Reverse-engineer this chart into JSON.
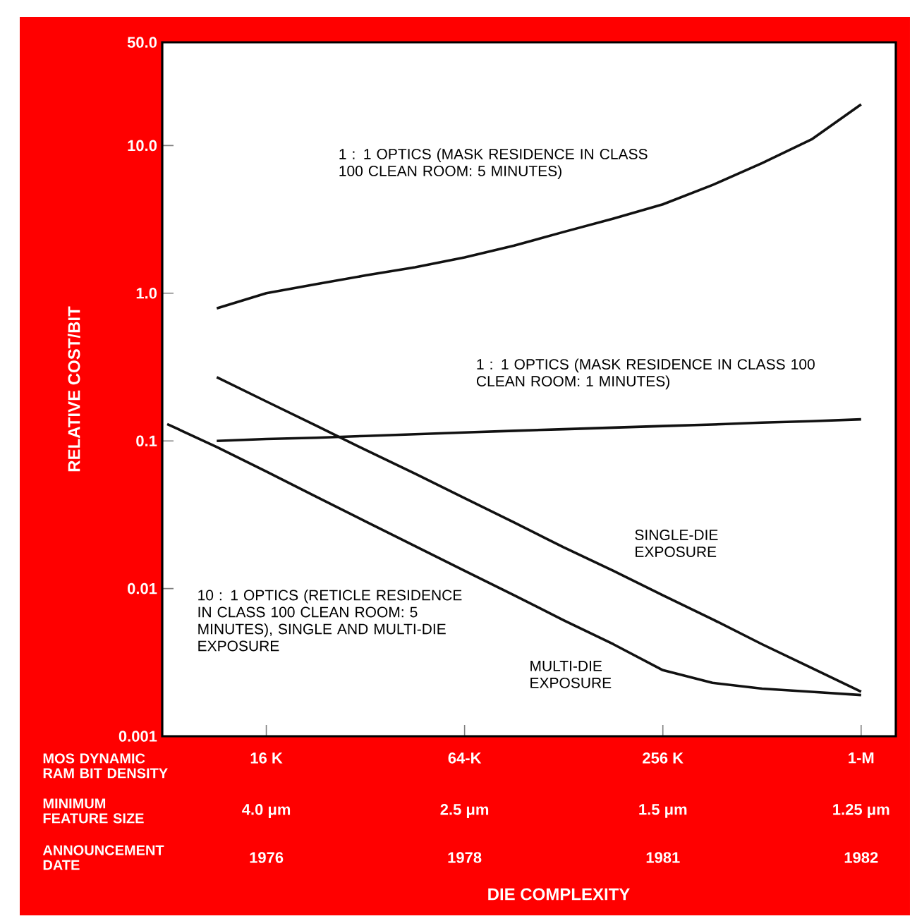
{
  "chart_data": {
    "type": "line",
    "ylabel": "RELATIVE COST/BIT",
    "categories": [
      null,
      null,
      "16 K",
      null,
      null,
      null,
      "64-K",
      null,
      null,
      null,
      "256 K",
      null,
      null,
      null,
      "1-M"
    ],
    "ylim": [
      0.001,
      50
    ],
    "log": "y",
    "yticks": [
      0.001,
      0.01,
      0.1,
      {
        "value": 1,
        "label": "1.0"
      },
      {
        "value": 10,
        "label": "10.0"
      },
      {
        "value": 50,
        "label": "50.0"
      }
    ],
    "series": [
      {
        "color": "#111111",
        "values": [
          null,
          0.79,
          1.0,
          1.15,
          1.32,
          1.5,
          1.75,
          2.1,
          2.6,
          3.2,
          4.0,
          5.4,
          7.6,
          11,
          19
        ]
      },
      {
        "color": "#111111",
        "values": [
          null,
          0.1,
          0.103,
          0.105,
          0.108,
          0.111,
          0.114,
          0.117,
          0.12,
          0.123,
          0.126,
          0.129,
          0.133,
          0.136,
          0.14
        ]
      },
      {
        "color": "#111111",
        "values": [
          null,
          0.27,
          0.185,
          0.127,
          0.087,
          0.06,
          0.041,
          0.028,
          0.019,
          0.0132,
          0.009,
          0.0062,
          0.0042,
          0.0029,
          0.002
        ]
      },
      {
        "color": "#111111",
        "values": [
          0.13,
          0.091,
          0.062,
          0.042,
          0.0285,
          0.0194,
          0.0132,
          0.009,
          0.0061,
          0.0042,
          0.0028,
          0.0023,
          0.0021,
          0.002,
          0.0019
        ]
      }
    ],
    "annotations": [
      "1 : 1 OPTICS (MASK RESIDENCE IN CLASS 100 CLEAN ROOM: 5 MINUTES)",
      "1 : 1 OPTICS (MASK RESIDENCE IN CLASS 100 CLEAN ROOM: 1 MINUTES)",
      "SINGLE-DIE EXPOSURE",
      "MULTI-DIE EXPOSURE",
      "10 : 1 OPTICS (RETICLE RESIDENCE IN CLASS 100 CLEAN ROOM: 5 MINUTES), SINGLE AND MULTI-DIE EXPOSURE",
      "MOS DYNAMIC RAM BIT DENSITY",
      "MINIMUM FEATURE SIZE",
      "ANNOUNCEMENT DATE",
      "4.0 μm",
      "2.5 μm",
      "1.5 μm",
      "1.25 μm",
      "1976",
      "1978",
      "1981",
      "1982",
      "DIE COMPLEXITY"
    ]
  }
}
